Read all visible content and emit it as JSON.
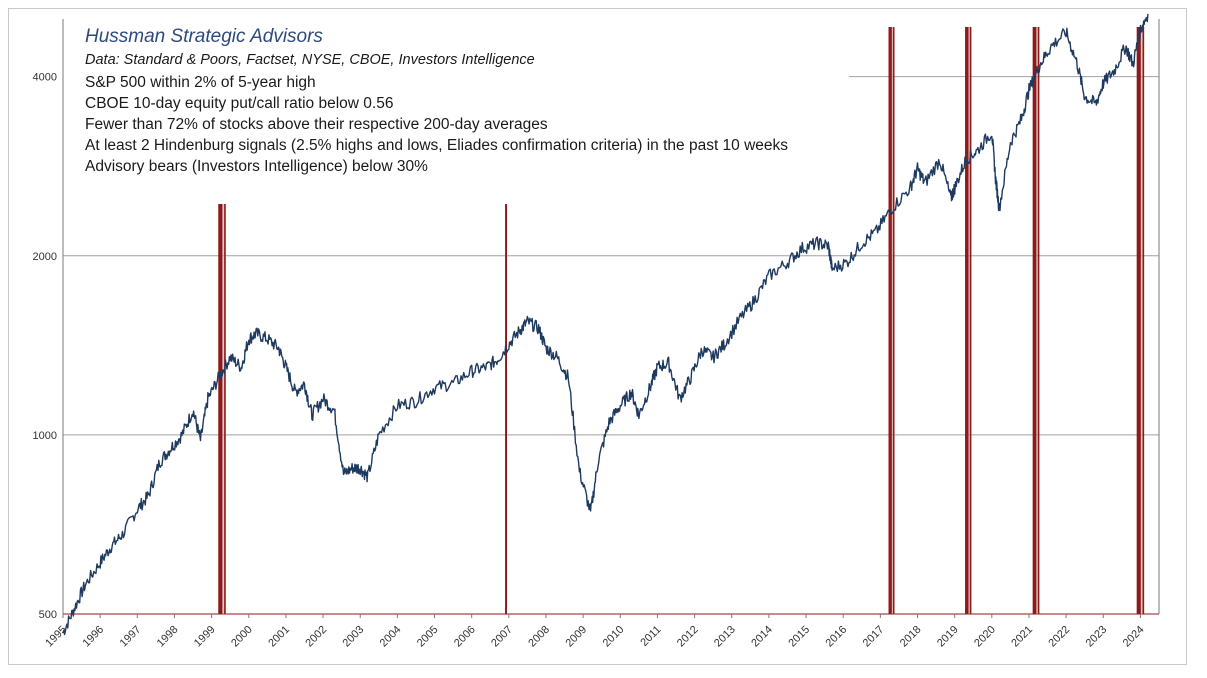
{
  "annotations": {
    "title": "Hussman Strategic Advisors",
    "source": "Data: Standard & Poors, Factset, NYSE, CBOE, Investors Intelligence",
    "criteria": [
      "S&P 500 within 2% of 5-year high",
      "CBOE 10-day equity put/call ratio below 0.56",
      "Fewer than 72% of stocks above their respective 200-day averages",
      "At least 2 Hindenburg signals (2.5% highs and lows, Eliades confirmation criteria) in the past 10 weeks",
      "Advisory bears (Investors Intelligence) below 30%"
    ]
  },
  "colors": {
    "series": "#1f3a5f",
    "signal": "#8b1a1a",
    "signal_light": "#d9a0a0",
    "grid": "#a0a0a0",
    "axis": "#7a7a7a"
  },
  "chart_data": {
    "type": "line",
    "title": "",
    "xlabel": "",
    "ylabel": "",
    "y_scale": "log",
    "ylim": [
      500,
      5000
    ],
    "xlim": [
      1995,
      2024.5
    ],
    "grid": "horizontal",
    "y_ticks": [
      500,
      1000,
      2000,
      4000
    ],
    "x_ticks": [
      "1995",
      "1996",
      "1997",
      "1998",
      "1999",
      "2000",
      "2001",
      "2002",
      "2003",
      "2004",
      "2005",
      "2006",
      "2007",
      "2008",
      "2009",
      "2010",
      "2011",
      "2012",
      "2013",
      "2014",
      "2015",
      "2016",
      "2017",
      "2018",
      "2019",
      "2020",
      "2021",
      "2022",
      "2023",
      "2024"
    ],
    "series": [
      {
        "x": [
          1995.0,
          1995.3,
          1995.6,
          1996.0,
          1996.3,
          1996.6,
          1997.0,
          1997.3,
          1997.6,
          1997.9,
          1998.2,
          1998.5,
          1998.7,
          1998.9,
          1999.2,
          1999.5,
          1999.8,
          2000.0,
          2000.2,
          2000.5,
          2000.8,
          2001.0,
          2001.25,
          2001.5,
          2001.7,
          2002.0,
          2002.3,
          2002.55,
          2002.8,
          2003.0,
          2003.2,
          2003.5,
          2004.0,
          2004.5,
          2005.0,
          2005.5,
          2006.0,
          2006.4,
          2006.7,
          2007.0,
          2007.3,
          2007.5,
          2007.8,
          2008.0,
          2008.3,
          2008.6,
          2008.9,
          2009.2,
          2009.4,
          2009.7,
          2010.0,
          2010.3,
          2010.5,
          2010.8,
          2011.0,
          2011.3,
          2011.6,
          2011.9,
          2012.2,
          2012.5,
          2012.8,
          2013.2,
          2013.6,
          2014.0,
          2014.5,
          2014.9,
          2015.3,
          2015.6,
          2015.7,
          2016.1,
          2016.5,
          2016.9,
          2017.3,
          2017.8,
          2018.0,
          2018.2,
          2018.6,
          2018.9,
          2019.0,
          2019.3,
          2019.6,
          2020.0,
          2020.1,
          2020.2,
          2020.5,
          2020.8,
          2021.0,
          2021.3,
          2021.6,
          2022.0,
          2022.3,
          2022.5,
          2022.8,
          2023.0,
          2023.3,
          2023.6,
          2023.8,
          2024.0,
          2024.2
        ],
        "y": [
          465,
          510,
          560,
          610,
          650,
          680,
          750,
          790,
          900,
          950,
          1000,
          1100,
          980,
          1150,
          1250,
          1350,
          1300,
          1450,
          1480,
          1450,
          1400,
          1300,
          1180,
          1220,
          1080,
          1150,
          1100,
          860,
          880,
          880,
          850,
          1000,
          1120,
          1140,
          1200,
          1220,
          1280,
          1300,
          1340,
          1420,
          1500,
          1550,
          1510,
          1400,
          1350,
          1250,
          870,
          740,
          900,
          1050,
          1120,
          1180,
          1080,
          1200,
          1300,
          1320,
          1150,
          1250,
          1390,
          1350,
          1420,
          1560,
          1680,
          1850,
          1950,
          2060,
          2100,
          2080,
          1900,
          1950,
          2100,
          2200,
          2400,
          2600,
          2800,
          2650,
          2900,
          2500,
          2600,
          2900,
          3000,
          3230,
          2700,
          2400,
          3100,
          3400,
          3800,
          4200,
          4500,
          4750,
          4200,
          3700,
          3600,
          3900,
          4100,
          4500,
          4200,
          4800,
          5100
        ]
      }
    ],
    "signals": [
      {
        "start": 1999.18,
        "end": 1999.38
      },
      {
        "start": 2006.9,
        "end": 2006.95
      },
      {
        "start": 2017.22,
        "end": 2017.38
      },
      {
        "start": 2019.28,
        "end": 2019.45
      },
      {
        "start": 2021.1,
        "end": 2021.28
      },
      {
        "start": 2023.9,
        "end": 2024.1
      }
    ]
  }
}
